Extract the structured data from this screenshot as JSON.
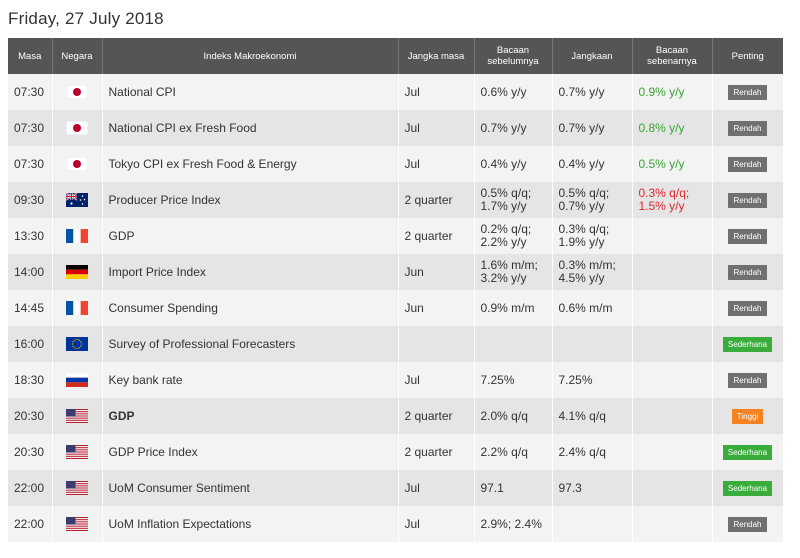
{
  "page_title": "Friday, 27 July 2018",
  "headers": [
    "Masa",
    "Negara",
    "Indeks Makroekonomi",
    "Jangka masa",
    "Bacaan sebelumnya",
    "Jangkaan",
    "Bacaan sebenarnya",
    "Penting"
  ],
  "rows": [
    {
      "time": "07:30",
      "country": "jp",
      "indicator": "National CPI",
      "period": "Jul",
      "previous": "0.6% y/y",
      "forecast": "0.7% y/y",
      "actual": "0.9% y/y",
      "actual_color": "#3aa335",
      "importance": "Rendah",
      "imp_level": "gray"
    },
    {
      "time": "07:30",
      "country": "jp",
      "indicator": "National CPI ex Fresh Food",
      "period": "Jul",
      "previous": "0.7% y/y",
      "forecast": "0.7% y/y",
      "actual": "0.8% y/y",
      "actual_color": "#3aa335",
      "importance": "Rendah",
      "imp_level": "gray"
    },
    {
      "time": "07:30",
      "country": "jp",
      "indicator": "Tokyo CPI ex Fresh Food & Energy",
      "period": "Jul",
      "previous": "0.4% y/y",
      "forecast": "0.4% y/y",
      "actual": "0.5% y/y",
      "actual_color": "#3aa335",
      "importance": "Rendah",
      "imp_level": "gray"
    },
    {
      "time": "09:30",
      "country": "au",
      "indicator": "Producer Price Index",
      "period": "2 quarter",
      "previous": "0.5% q/q;\n1.7% y/y",
      "forecast": "0.5% q/q;\n0.7% y/y",
      "actual": "0.3% q/q;\n1.5% y/y",
      "actual_color": "#e0282e",
      "importance": "Rendah",
      "imp_level": "gray"
    },
    {
      "time": "13:30",
      "country": "fr",
      "indicator": "GDP",
      "period": "2 quarter",
      "previous": "0.2% q/q;\n2.2% y/y",
      "forecast": "0.3% q/q;\n1.9% y/y",
      "actual": "",
      "actual_color": "#333333",
      "importance": "Rendah",
      "imp_level": "gray"
    },
    {
      "time": "14:00",
      "country": "de",
      "indicator": "Import Price Index",
      "period": "Jun",
      "previous": "1.6% m/m;\n3.2% y/y",
      "forecast": "0.3% m/m;\n4.5% y/y",
      "actual": "",
      "actual_color": "#333333",
      "importance": "Rendah",
      "imp_level": "gray"
    },
    {
      "time": "14:45",
      "country": "fr",
      "indicator": "Consumer Spending",
      "period": "Jun",
      "previous": "0.9% m/m",
      "forecast": "0.6% m/m",
      "actual": "",
      "actual_color": "#333333",
      "importance": "Rendah",
      "imp_level": "gray"
    },
    {
      "time": "16:00",
      "country": "eu",
      "indicator": "Survey of Professional Forecasters",
      "period": "",
      "previous": "",
      "forecast": "",
      "actual": "",
      "actual_color": "#333333",
      "importance": "Sederhana",
      "imp_level": "green"
    },
    {
      "time": "18:30",
      "country": "ru",
      "indicator": "Key bank rate",
      "period": "Jul",
      "previous": "7.25%",
      "forecast": "7.25%",
      "actual": "",
      "actual_color": "#333333",
      "importance": "Rendah",
      "imp_level": "gray"
    },
    {
      "time": "20:30",
      "country": "us",
      "indicator": "GDP",
      "period": "2 quarter",
      "previous": "2.0% q/q",
      "forecast": "4.1% q/q",
      "actual": "",
      "actual_color": "#333333",
      "importance": "Tinggi",
      "imp_level": "orange",
      "bold": true
    },
    {
      "time": "20:30",
      "country": "us",
      "indicator": "GDP Price Index",
      "period": "2 quarter",
      "previous": "2.2% q/q",
      "forecast": "2.4% q/q",
      "actual": "",
      "actual_color": "#333333",
      "importance": "Sederhana",
      "imp_level": "green"
    },
    {
      "time": "22:00",
      "country": "us",
      "indicator": "UoM Consumer Sentiment",
      "period": "Jul",
      "previous": "97.1",
      "forecast": "97.3",
      "actual": "",
      "actual_color": "#333333",
      "importance": "Sederhana",
      "imp_level": "green"
    },
    {
      "time": "22:00",
      "country": "us",
      "indicator": "UoM Inflation Expectations",
      "period": "Jul",
      "previous": "2.9%; 2.4%",
      "forecast": "",
      "actual": "",
      "actual_color": "#333333",
      "importance": "Rendah",
      "imp_level": "gray"
    }
  ],
  "flag_icons": {
    "jp": "japan-flag-icon",
    "au": "australia-flag-icon",
    "fr": "france-flag-icon",
    "de": "germany-flag-icon",
    "eu": "eu-flag-icon",
    "ru": "russia-flag-icon",
    "us": "usa-flag-icon"
  }
}
